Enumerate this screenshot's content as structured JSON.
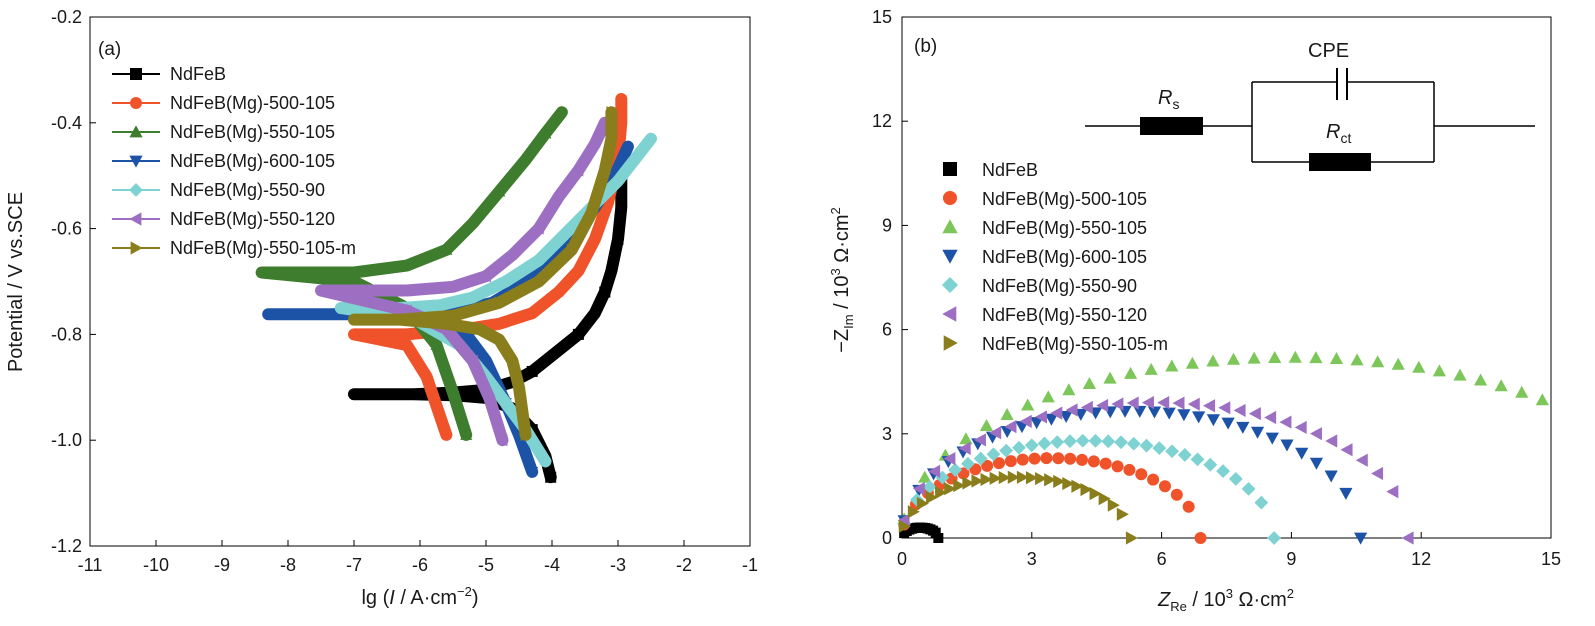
{
  "colors": {
    "NdFeB": "#000000",
    "NdFeB(Mg)-500-105": "#f0522a",
    "NdFeB(Mg)-550-105": "#3e7d2e",
    "NdFeB(Mg)-600-105": "#1d53a6",
    "NdFeB(Mg)-550-90": "#7ed2d2",
    "NdFeB(Mg)-550-120": "#9d6fc2",
    "NdFeB(Mg)-550-105-m": "#8a7e1c"
  },
  "nyquist_colors": {
    "NdFeB(Mg)-550-105": "#7dc75a"
  },
  "chart_data": [
    {
      "type": "line",
      "panel_label": "(a)",
      "xlabel": {
        "pre": "lg (",
        "italic": "I",
        "post": " / A·cm",
        "sup": "−2",
        "close": ")"
      },
      "ylabel": "Potential / V vs.SCE",
      "xlim": [
        -11,
        -1
      ],
      "ylim": [
        -1.2,
        -0.2
      ],
      "xticks": [
        -11,
        -10,
        -9,
        -8,
        -7,
        -6,
        -5,
        -4,
        -3,
        -2,
        -1
      ],
      "yticks": [
        -0.2,
        -0.4,
        -0.6,
        -0.8,
        -1.0,
        -1.2
      ],
      "ytick_labels": [
        "-0.2",
        "-0.4",
        "-0.6",
        "-0.8",
        "-1.0",
        "-1.2"
      ],
      "legend_position": "top-left",
      "series": [
        {
          "name": "NdFeB",
          "marker": "square",
          "x": [
            -4.02,
            -4.1,
            -4.3,
            -4.6,
            -5.0,
            -5.5,
            -6.1,
            -7.0,
            -6.1,
            -5.5,
            -5.0,
            -4.6,
            -4.3,
            -3.9,
            -3.6,
            -3.35,
            -3.2,
            -3.1,
            -3.0,
            -2.95,
            -2.95
          ],
          "y": [
            -1.07,
            -1.03,
            -0.98,
            -0.94,
            -0.92,
            -0.915,
            -0.913,
            -0.913,
            -0.913,
            -0.91,
            -0.905,
            -0.89,
            -0.87,
            -0.83,
            -0.8,
            -0.76,
            -0.72,
            -0.68,
            -0.62,
            -0.56,
            -0.5
          ]
        },
        {
          "name": "NdFeB(Mg)-500-105",
          "marker": "circle",
          "x": [
            -5.6,
            -5.9,
            -6.2,
            -7.0,
            -6.2,
            -5.8,
            -5.3,
            -4.8,
            -4.3,
            -3.9,
            -3.6,
            -3.35,
            -3.15,
            -3.0,
            -2.95,
            -2.95
          ],
          "y": [
            -0.99,
            -0.88,
            -0.82,
            -0.8,
            -0.8,
            -0.795,
            -0.79,
            -0.78,
            -0.76,
            -0.72,
            -0.68,
            -0.62,
            -0.55,
            -0.47,
            -0.4,
            -0.355
          ]
        },
        {
          "name": "NdFeB(Mg)-550-105",
          "marker": "triangle-up",
          "x": [
            -5.3,
            -5.5,
            -5.75,
            -6.2,
            -7.0,
            -8.4,
            -7.0,
            -6.2,
            -5.6,
            -5.2,
            -4.8,
            -4.4,
            -4.1,
            -3.85
          ],
          "y": [
            -0.99,
            -0.91,
            -0.82,
            -0.75,
            -0.7,
            -0.683,
            -0.683,
            -0.67,
            -0.64,
            -0.59,
            -0.53,
            -0.47,
            -0.42,
            -0.38
          ]
        },
        {
          "name": "NdFeB(Mg)-600-105",
          "marker": "triangle-down",
          "x": [
            -4.3,
            -4.5,
            -4.7,
            -5.0,
            -5.3,
            -6.0,
            -7.0,
            -8.3,
            -7.0,
            -6.0,
            -5.4,
            -4.9,
            -4.5,
            -4.1,
            -3.7,
            -3.35,
            -3.05,
            -2.85
          ],
          "y": [
            -1.06,
            -0.99,
            -0.93,
            -0.85,
            -0.8,
            -0.77,
            -0.762,
            -0.762,
            -0.762,
            -0.76,
            -0.755,
            -0.74,
            -0.71,
            -0.67,
            -0.62,
            -0.56,
            -0.5,
            -0.445
          ]
        },
        {
          "name": "NdFeB(Mg)-550-90",
          "marker": "diamond",
          "x": [
            -4.1,
            -4.4,
            -4.7,
            -5.0,
            -5.4,
            -6.1,
            -7.2,
            -6.3,
            -5.7,
            -5.2,
            -4.7,
            -4.2,
            -3.8,
            -3.4,
            -3.0,
            -2.75,
            -2.5
          ],
          "y": [
            -1.04,
            -0.98,
            -0.93,
            -0.88,
            -0.82,
            -0.77,
            -0.75,
            -0.75,
            -0.745,
            -0.73,
            -0.7,
            -0.66,
            -0.61,
            -0.56,
            -0.51,
            -0.47,
            -0.43
          ]
        },
        {
          "name": "NdFeB(Mg)-550-120",
          "marker": "triangle-left",
          "x": [
            -4.75,
            -4.95,
            -5.2,
            -5.6,
            -6.2,
            -7.5,
            -6.2,
            -5.5,
            -5.0,
            -4.6,
            -4.2,
            -3.9,
            -3.6,
            -3.35,
            -3.2
          ],
          "y": [
            -1.0,
            -0.92,
            -0.85,
            -0.79,
            -0.755,
            -0.717,
            -0.717,
            -0.71,
            -0.69,
            -0.65,
            -0.6,
            -0.54,
            -0.49,
            -0.44,
            -0.4
          ]
        },
        {
          "name": "NdFeB(Mg)-550-105-m",
          "marker": "triangle-right",
          "x": [
            -4.4,
            -4.5,
            -4.6,
            -4.8,
            -5.1,
            -5.6,
            -6.3,
            -7.0,
            -6.3,
            -5.5,
            -4.8,
            -4.2,
            -3.7,
            -3.4,
            -3.2,
            -3.1,
            -3.1
          ],
          "y": [
            -0.99,
            -0.9,
            -0.85,
            -0.81,
            -0.79,
            -0.78,
            -0.772,
            -0.772,
            -0.772,
            -0.765,
            -0.74,
            -0.7,
            -0.64,
            -0.57,
            -0.49,
            -0.43,
            -0.38
          ]
        }
      ]
    },
    {
      "type": "scatter",
      "panel_label": "(b)",
      "xlabel": {
        "pre": "Z",
        "sub": "Re",
        "post": " / 10",
        "sup": "3",
        "tail": " Ω·cm",
        "sup2": "2"
      },
      "ylabel": {
        "pre": "−Z",
        "sub": "Im",
        "post": " / 10",
        "sup": "3",
        "tail": " Ω·cm",
        "sup2": "2"
      },
      "xlim": [
        0,
        15
      ],
      "ylim": [
        0,
        15
      ],
      "xticks": [
        0,
        3,
        6,
        9,
        12,
        15
      ],
      "yticks": [
        0,
        3,
        6,
        9,
        12,
        15
      ],
      "legend_position": "middle-left",
      "series": [
        {
          "name": "NdFeB",
          "marker": "square",
          "center": 0.42,
          "radius": 0.42,
          "ymax": 0.3,
          "npts": 14
        },
        {
          "name": "NdFeB(Mg)-500-105",
          "marker": "circle",
          "center": 3.45,
          "radius": 3.45,
          "ymax": 2.3,
          "npts": 26
        },
        {
          "name": "NdFeB(Mg)-550-105",
          "marker": "triangle-up",
          "center": 9.0,
          "radius": 9.0,
          "ymax": 5.2,
          "npts": 32,
          "xmax_data": 14.8
        },
        {
          "name": "NdFeB(Mg)-600-105",
          "marker": "triangle-down",
          "center": 5.3,
          "radius": 5.3,
          "ymax": 3.65,
          "npts": 32
        },
        {
          "name": "NdFeB(Mg)-550-90",
          "marker": "diamond",
          "center": 4.3,
          "radius": 4.3,
          "ymax": 2.8,
          "npts": 30
        },
        {
          "name": "NdFeB(Mg)-550-120",
          "marker": "triangle-left",
          "center": 5.85,
          "radius": 5.85,
          "ymax": 3.9,
          "npts": 34
        },
        {
          "name": "NdFeB(Mg)-550-105-m",
          "marker": "triangle-right",
          "center": 2.65,
          "radius": 2.65,
          "ymax": 1.75,
          "npts": 26
        }
      ],
      "circuit": {
        "cpe_label": "CPE",
        "rs_main": "R",
        "rs_sub": "s",
        "rct_main": "R",
        "rct_sub": "ct"
      }
    }
  ]
}
